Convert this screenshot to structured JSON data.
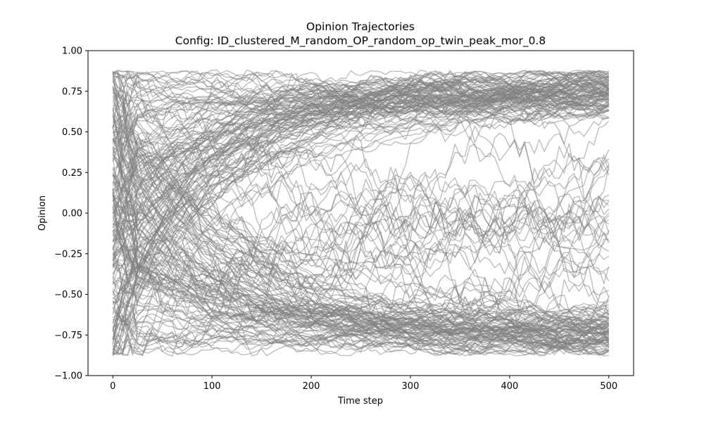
{
  "chart_data": {
    "type": "line",
    "title": "Opinion Trajectories",
    "subtitle": "Config: ID_clustered_M_random_OP_random_op_twin_peak_mor_0.8",
    "xlabel": "Time step",
    "ylabel": "Opinion",
    "xlim": [
      -25,
      525
    ],
    "ylim": [
      -1.0,
      1.0
    ],
    "xticks": [
      0,
      100,
      200,
      300,
      400,
      500
    ],
    "xtick_labels": [
      "0",
      "100",
      "200",
      "300",
      "400",
      "500"
    ],
    "yticks": [
      -1.0,
      -0.75,
      -0.5,
      -0.25,
      0.0,
      0.25,
      0.5,
      0.75,
      1.0
    ],
    "ytick_labels": [
      "−1.00",
      "−0.75",
      "−0.50",
      "−0.25",
      "0.00",
      "0.25",
      "0.50",
      "0.75",
      "1.00"
    ],
    "grid": false,
    "legend": "none",
    "line_color": "#808080",
    "line_alpha": 0.5,
    "description": {
      "n_trajectories": "many",
      "time_range": [
        0,
        500
      ],
      "initial_opinion_range": [
        -1.0,
        1.0
      ],
      "upper_cluster_center": 0.75,
      "lower_cluster_center": -0.75,
      "upper_cluster_band": [
        0.6,
        0.85
      ],
      "lower_cluster_band": [
        -0.85,
        -0.6
      ],
      "settling_time_step": 150
    }
  }
}
